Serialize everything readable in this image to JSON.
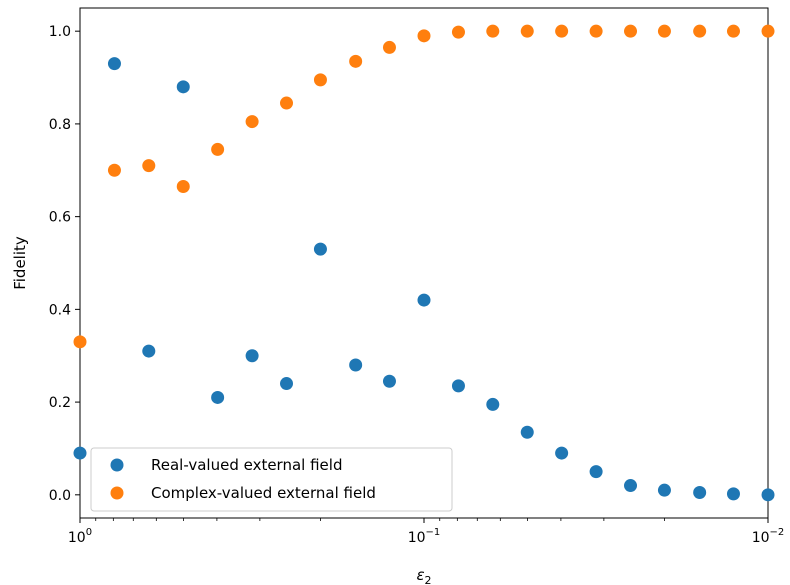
{
  "chart_data": {
    "type": "scatter",
    "title": "",
    "xlabel_base": "ε",
    "xlabel_sub": "2",
    "ylabel": "Fidelity",
    "x_scale": "log",
    "x_reversed": true,
    "xlim": [
      1,
      0.01
    ],
    "ylim": [
      -0.05,
      1.05
    ],
    "grid": false,
    "legend_position": "lower-left",
    "x_ticks": [
      {
        "value": 1,
        "base": "10",
        "exp": "0"
      },
      {
        "value": 0.1,
        "base": "10",
        "exp": "−1"
      },
      {
        "value": 0.01,
        "base": "10",
        "exp": "−2"
      }
    ],
    "y_ticks": [
      {
        "value": 0.0,
        "label": "0.0"
      },
      {
        "value": 0.2,
        "label": "0.2"
      },
      {
        "value": 0.4,
        "label": "0.4"
      },
      {
        "value": 0.6,
        "label": "0.6"
      },
      {
        "value": 0.8,
        "label": "0.8"
      },
      {
        "value": 1.0,
        "label": "1.0"
      }
    ],
    "x": [
      1.0,
      0.794,
      0.631,
      0.501,
      0.398,
      0.316,
      0.251,
      0.2,
      0.158,
      0.126,
      0.1,
      0.0794,
      0.0631,
      0.0501,
      0.0398,
      0.0316,
      0.0251,
      0.02,
      0.0158,
      0.0126,
      0.01
    ],
    "series": [
      {
        "name": "Real-valued external field",
        "color": "#1f77b4",
        "values": [
          0.09,
          0.93,
          0.31,
          0.88,
          0.21,
          0.3,
          0.24,
          0.53,
          0.28,
          0.245,
          0.42,
          0.235,
          0.195,
          0.135,
          0.09,
          0.05,
          0.02,
          0.01,
          0.005,
          0.002,
          0.0
        ]
      },
      {
        "name": "Complex-valued external field",
        "color": "#ff7f0e",
        "values": [
          0.33,
          0.7,
          0.71,
          0.665,
          0.745,
          0.805,
          0.845,
          0.895,
          0.935,
          0.965,
          0.99,
          0.998,
          1.0,
          1.0,
          1.0,
          1.0,
          1.0,
          1.0,
          1.0,
          1.0,
          1.0
        ]
      }
    ]
  }
}
